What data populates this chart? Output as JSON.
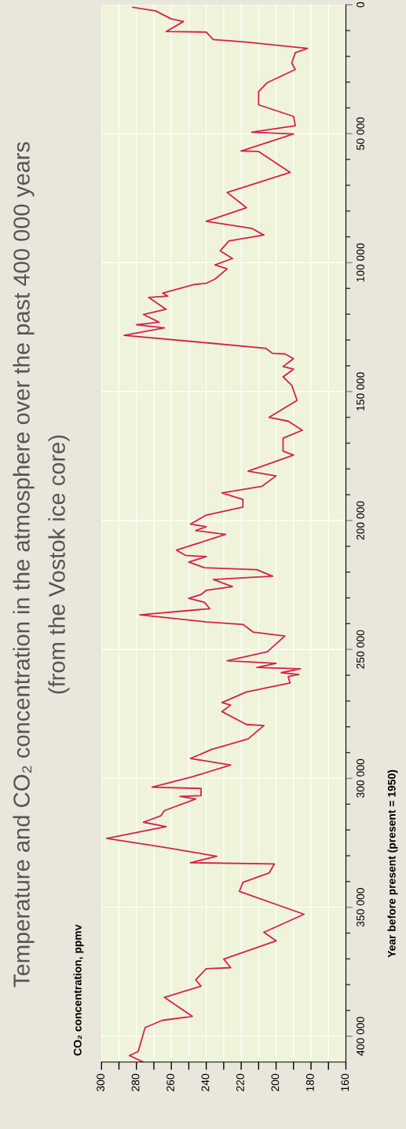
{
  "chart_data": {
    "type": "line",
    "title": "Temperature and CO₂ concentration in the atmosphere over the past 400 000 years",
    "subtitle": "(from the Vostok ice core)",
    "annotations": [
      "CO₂ concentration, ppmv"
    ],
    "ylabel": "Year before present (present = 1950)",
    "series": [
      {
        "color": "#d6204f",
        "x": [
          282,
          269,
          260,
          253,
          263,
          240,
          236,
          217,
          182,
          189,
          191,
          189,
          205,
          210,
          210,
          190,
          189,
          214,
          190,
          220,
          210,
          192,
          228,
          217,
          240,
          214,
          207,
          227,
          232,
          225,
          235,
          228,
          235,
          240,
          247,
          265,
          262,
          273,
          263,
          276,
          267,
          280,
          264,
          287,
          238,
          206,
          202,
          195,
          190,
          196,
          190,
          196,
          191,
          188,
          204,
          193,
          185,
          196,
          196,
          190,
          216,
          200,
          208,
          231,
          219,
          219,
          240,
          249,
          240,
          246,
          229,
          257,
          252,
          240,
          250,
          241,
          211,
          202,
          236,
          225,
          240,
          243,
          250,
          241,
          238,
          278,
          240,
          219,
          213,
          195,
          205,
          228,
          200,
          211,
          186,
          197,
          187,
          193,
          192,
          217,
          231,
          226,
          231,
          217,
          207,
          216,
          237,
          249,
          226,
          248,
          271,
          243,
          243,
          255,
          246,
          264,
          266,
          276,
          263,
          297,
          265,
          234,
          249,
          201,
          204,
          219,
          221,
          184,
          207,
          200,
          230,
          226,
          240,
          246,
          243,
          264,
          248,
          265,
          275,
          279,
          284,
          276
        ],
        "values": [
          1000,
          2400,
          5500,
          6500,
          10400,
          10600,
          13500,
          14500,
          16900,
          18600,
          22600,
          25100,
          30200,
          33700,
          38800,
          43300,
          46900,
          49400,
          50100,
          56700,
          56900,
          65000,
          72800,
          78700,
          84000,
          86700,
          89300,
          91600,
          95400,
          98400,
          100900,
          102400,
          106400,
          108000,
          108500,
          111800,
          113000,
          113500,
          118100,
          120100,
          123100,
          124100,
          125300,
          128200,
          131200,
          133200,
          135200,
          135400,
          137200,
          140300,
          141300,
          144300,
          147600,
          153400,
          160000,
          161500,
          165000,
          168100,
          173100,
          174600,
          180900,
          182700,
          186700,
          189300,
          191800,
          194800,
          197900,
          201400,
          202400,
          203900,
          205400,
          211500,
          213500,
          214000,
          216100,
          218300,
          219100,
          221600,
          222900,
          225600,
          227100,
          228700,
          230200,
          231700,
          234200,
          236600,
          239300,
          240300,
          243300,
          244800,
          250900,
          254400,
          255400,
          257000,
          257500,
          259000,
          259700,
          260500,
          263000,
          266500,
          270600,
          271600,
          274100,
          279100,
          279500,
          284700,
          288800,
          292300,
          294800,
          299400,
          303400,
          303900,
          306700,
          307000,
          308000,
          312500,
          314500,
          317000,
          318700,
          323300,
          326600,
          330200,
          332700,
          333200,
          336700,
          340300,
          343800,
          352700,
          359700,
          363000,
          370100,
          373400,
          373800,
          378100,
          380600,
          384900,
          392300,
          393800,
          396600,
          405900,
          407500,
          410000
        ]
      }
    ],
    "ylim": [
      410000,
      0
    ],
    "yticks": [
      {
        "value": 0,
        "label": "0"
      },
      {
        "value": 10000,
        "label": null
      },
      {
        "value": 20000,
        "label": null
      },
      {
        "value": 30000,
        "label": null
      },
      {
        "value": 40000,
        "label": null
      },
      {
        "value": 50000,
        "label": "50 000"
      },
      {
        "value": 60000,
        "label": null
      },
      {
        "value": 70000,
        "label": null
      },
      {
        "value": 80000,
        "label": null
      },
      {
        "value": 90000,
        "label": null
      },
      {
        "value": 100000,
        "label": "100 000"
      },
      {
        "value": 110000,
        "label": null
      },
      {
        "value": 120000,
        "label": null
      },
      {
        "value": 130000,
        "label": null
      },
      {
        "value": 140000,
        "label": null
      },
      {
        "value": 150000,
        "label": "150 000"
      },
      {
        "value": 160000,
        "label": null
      },
      {
        "value": 170000,
        "label": null
      },
      {
        "value": 180000,
        "label": null
      },
      {
        "value": 190000,
        "label": null
      },
      {
        "value": 200000,
        "label": "200 000"
      },
      {
        "value": 210000,
        "label": null
      },
      {
        "value": 220000,
        "label": null
      },
      {
        "value": 230000,
        "label": null
      },
      {
        "value": 240000,
        "label": null
      },
      {
        "value": 250000,
        "label": "250 000"
      },
      {
        "value": 260000,
        "label": null
      },
      {
        "value": 270000,
        "label": null
      },
      {
        "value": 280000,
        "label": null
      },
      {
        "value": 290000,
        "label": null
      },
      {
        "value": 300000,
        "label": "300 000"
      },
      {
        "value": 310000,
        "label": null
      },
      {
        "value": 320000,
        "label": null
      },
      {
        "value": 330000,
        "label": null
      },
      {
        "value": 340000,
        "label": null
      },
      {
        "value": 350000,
        "label": "350 000"
      },
      {
        "value": 360000,
        "label": null
      },
      {
        "value": 370000,
        "label": null
      },
      {
        "value": 380000,
        "label": null
      },
      {
        "value": 390000,
        "label": null
      },
      {
        "value": 400000,
        "label": "400 000"
      }
    ],
    "xlim": [
      300,
      160
    ],
    "xticks": [
      300,
      {
        "value": 290,
        "label": null
      },
      280,
      {
        "value": 270,
        "label": null
      },
      260,
      {
        "value": 250,
        "label": null
      },
      240,
      {
        "value": 230,
        "label": null
      },
      220,
      {
        "value": 210,
        "label": null
      },
      200,
      {
        "value": 190,
        "label": null
      },
      180,
      {
        "value": 170,
        "label": null
      },
      160
    ],
    "grid": true,
    "marker": "none",
    "line_style": "solid"
  }
}
